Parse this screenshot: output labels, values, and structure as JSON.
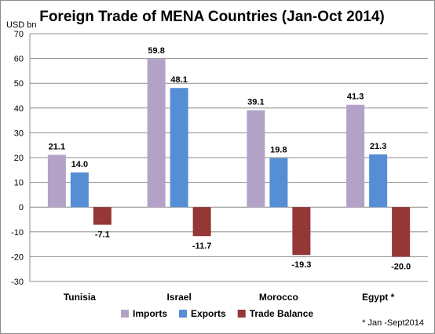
{
  "chart_data": {
    "type": "bar",
    "title": "Foreign Trade of MENA Countries (Jan-Oct 2014)",
    "ylabel": "USD bn",
    "categories": [
      "Tunisia",
      "Israel",
      "Morocco",
      "Egypt *"
    ],
    "series": [
      {
        "name": "Imports",
        "values": [
          21.1,
          59.8,
          39.1,
          41.3
        ],
        "color": "#b3a2c7"
      },
      {
        "name": "Exports",
        "values": [
          14.0,
          48.1,
          19.8,
          21.3
        ],
        "color": "#558ed5"
      },
      {
        "name": "Trade Balance",
        "values": [
          -7.1,
          -11.7,
          -19.3,
          -20.0
        ],
        "color": "#953735"
      }
    ],
    "ylim": [
      -30,
      70
    ],
    "yticks": [
      -30,
      -20,
      -10,
      0,
      10,
      20,
      30,
      40,
      50,
      60,
      70
    ],
    "grid": true,
    "legend_position": "bottom",
    "footnote": "* Jan -Sept2014"
  }
}
